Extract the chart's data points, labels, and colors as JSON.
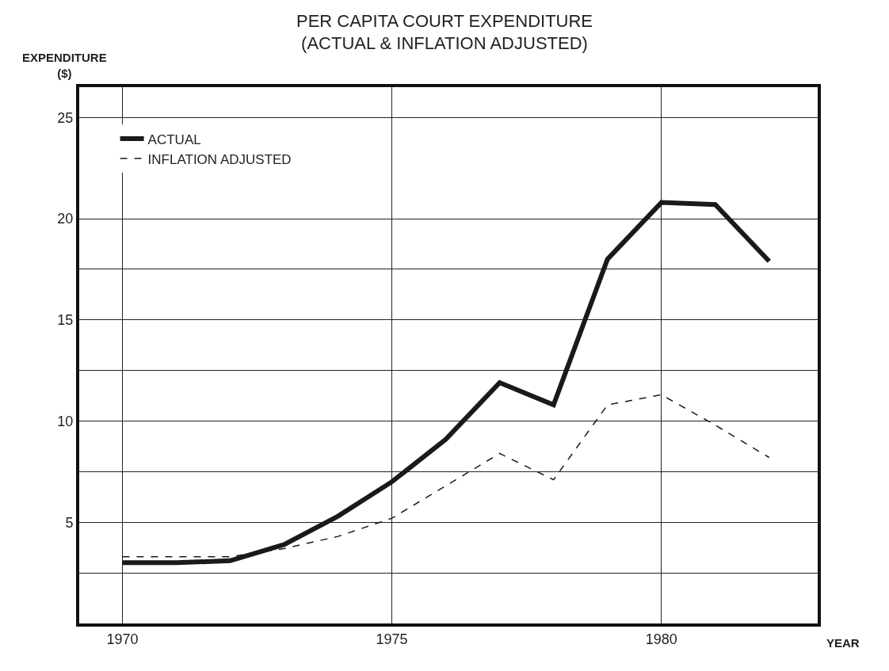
{
  "chart_data": {
    "type": "line",
    "title": "PER CAPITA COURT EXPENDITURE\n(ACTUAL & INFLATION ADJUSTED)",
    "ylabel": "EXPENDITURE\n($)",
    "xlabel": "YEAR",
    "x": [
      1970,
      1971,
      1972,
      1973,
      1974,
      1975,
      1976,
      1977,
      1978,
      1979,
      1980,
      1981,
      1982
    ],
    "series": [
      {
        "name": "ACTUAL",
        "color": "#1a1a1a",
        "line_style": "solid",
        "values": [
          3.0,
          3.0,
          3.1,
          3.9,
          5.3,
          7.0,
          9.1,
          11.9,
          10.8,
          18.0,
          20.8,
          20.7,
          17.9
        ]
      },
      {
        "name": "INFLATION ADJUSTED",
        "color": "#1a1a1a",
        "line_style": "dashed",
        "values": [
          3.3,
          3.3,
          3.3,
          3.7,
          4.3,
          5.2,
          6.8,
          8.4,
          7.1,
          10.8,
          11.3,
          9.8,
          8.2
        ]
      }
    ],
    "xlim": [
      1969.2,
      1982.9
    ],
    "xticks": [
      1970,
      1975,
      1980
    ],
    "ylim": [
      0,
      26.5
    ],
    "yticks": [
      {
        "value": 2.5,
        "label": null
      },
      5,
      {
        "value": 7.5,
        "label": null
      },
      10,
      {
        "value": 12.5,
        "label": null
      },
      15,
      {
        "value": 17.5,
        "label": null
      },
      20,
      25
    ],
    "grid": true,
    "legend": "top left",
    "marker": "none"
  }
}
